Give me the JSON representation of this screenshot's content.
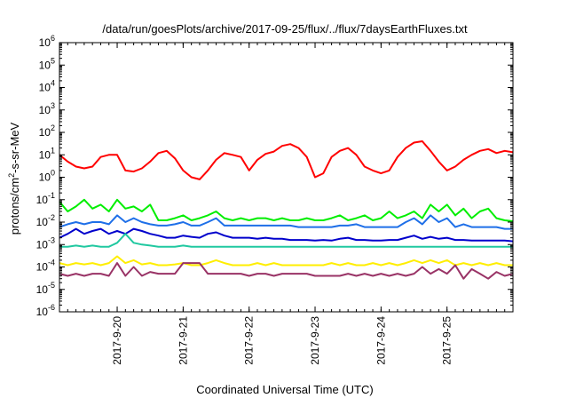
{
  "chart_data": {
    "type": "line",
    "title": "/data/run/goesPlots/archive/2017-09-25/flux/../flux/7daysEarthFluxes.txt",
    "xlabel": "Coordinated Universal Time (UTC)",
    "ylabel": {
      "base": "protons/cm",
      "sup": "2",
      "rest": "-s-sr-MeV"
    },
    "yscale": "log",
    "ylim": [
      1e-06,
      1000000.0
    ],
    "y_tick_labels": [
      {
        "value": 1e-06,
        "base": "10",
        "exp": "-6"
      },
      {
        "value": 1e-05,
        "base": "10",
        "exp": "-5"
      },
      {
        "value": 0.0001,
        "base": "10",
        "exp": "-4"
      },
      {
        "value": 0.001,
        "base": "10",
        "exp": "-3"
      },
      {
        "value": 0.01,
        "base": "10",
        "exp": "-2"
      },
      {
        "value": 0.1,
        "base": "10",
        "exp": "-1"
      },
      {
        "value": 1.0,
        "base": "10",
        "exp": "0"
      },
      {
        "value": 10.0,
        "base": "10",
        "exp": "1"
      },
      {
        "value": 100.0,
        "base": "10",
        "exp": "2"
      },
      {
        "value": 1000.0,
        "base": "10",
        "exp": "3"
      },
      {
        "value": 10000.0,
        "base": "10",
        "exp": "4"
      },
      {
        "value": 100000.0,
        "base": "10",
        "exp": "5"
      },
      {
        "value": 1000000.0,
        "base": "10",
        "exp": "6"
      }
    ],
    "xlim": [
      "2017-09-19 03:00",
      "2017-09-26 00:00"
    ],
    "x_tick_labels": [
      {
        "value": "2017-09-20 00:00",
        "label": "2017-9-20"
      },
      {
        "value": "2017-09-21 00:00",
        "label": "2017-9-21"
      },
      {
        "value": "2017-09-22 00:00",
        "label": "2017-9-22"
      },
      {
        "value": "2017-09-23 00:00",
        "label": "2017-9-23"
      },
      {
        "value": "2017-09-24 00:00",
        "label": "2017-9-24"
      },
      {
        "value": "2017-09-25 00:00",
        "label": "2017-9-25"
      }
    ],
    "grid": false,
    "legend": "none",
    "x": [
      "2017-09-19 03:00",
      "2017-09-19 06:00",
      "2017-09-19 09:00",
      "2017-09-19 12:00",
      "2017-09-19 15:00",
      "2017-09-19 18:00",
      "2017-09-19 21:00",
      "2017-09-20 00:00",
      "2017-09-20 03:00",
      "2017-09-20 06:00",
      "2017-09-20 09:00",
      "2017-09-20 12:00",
      "2017-09-20 15:00",
      "2017-09-20 18:00",
      "2017-09-20 21:00",
      "2017-09-21 00:00",
      "2017-09-21 03:00",
      "2017-09-21 06:00",
      "2017-09-21 09:00",
      "2017-09-21 12:00",
      "2017-09-21 15:00",
      "2017-09-21 18:00",
      "2017-09-21 21:00",
      "2017-09-22 00:00",
      "2017-09-22 03:00",
      "2017-09-22 06:00",
      "2017-09-22 09:00",
      "2017-09-22 12:00",
      "2017-09-22 15:00",
      "2017-09-22 18:00",
      "2017-09-22 21:00",
      "2017-09-23 00:00",
      "2017-09-23 03:00",
      "2017-09-23 06:00",
      "2017-09-23 09:00",
      "2017-09-23 12:00",
      "2017-09-23 15:00",
      "2017-09-23 18:00",
      "2017-09-23 21:00",
      "2017-09-24 00:00",
      "2017-09-24 03:00",
      "2017-09-24 06:00",
      "2017-09-24 09:00",
      "2017-09-24 12:00",
      "2017-09-24 15:00",
      "2017-09-24 18:00",
      "2017-09-24 21:00",
      "2017-09-25 00:00",
      "2017-09-25 03:00",
      "2017-09-25 06:00",
      "2017-09-25 09:00",
      "2017-09-25 12:00",
      "2017-09-25 15:00",
      "2017-09-25 18:00",
      "2017-09-25 21:00",
      "2017-09-26 00:00"
    ],
    "series": [
      {
        "color": "#ff0000",
        "values": [
          10,
          5,
          3,
          2.5,
          3,
          8,
          10,
          10,
          2,
          1.8,
          2.5,
          5,
          12,
          15,
          7,
          2,
          1,
          0.8,
          2,
          6,
          12,
          10,
          8,
          2,
          6,
          11,
          14,
          25,
          30,
          20,
          8,
          1,
          1.5,
          8,
          15,
          20,
          10,
          3,
          2,
          1.5,
          2,
          8,
          20,
          35,
          40,
          15,
          5,
          2,
          3,
          6,
          10,
          15,
          18,
          12,
          15,
          13
        ]
      },
      {
        "color": "#00ee00",
        "values": [
          0.08,
          0.03,
          0.05,
          0.1,
          0.04,
          0.06,
          0.03,
          0.1,
          0.04,
          0.05,
          0.03,
          0.06,
          0.012,
          0.012,
          0.015,
          0.02,
          0.012,
          0.015,
          0.02,
          0.03,
          0.015,
          0.012,
          0.015,
          0.012,
          0.015,
          0.015,
          0.012,
          0.015,
          0.012,
          0.012,
          0.015,
          0.012,
          0.012,
          0.015,
          0.02,
          0.012,
          0.015,
          0.02,
          0.012,
          0.015,
          0.03,
          0.015,
          0.02,
          0.03,
          0.015,
          0.06,
          0.03,
          0.06,
          0.02,
          0.04,
          0.015,
          0.03,
          0.04,
          0.015,
          0.012,
          0.011
        ]
      },
      {
        "color": "#1e6fe8",
        "values": [
          0.006,
          0.008,
          0.01,
          0.008,
          0.01,
          0.01,
          0.008,
          0.02,
          0.01,
          0.015,
          0.01,
          0.008,
          0.007,
          0.007,
          0.008,
          0.01,
          0.007,
          0.007,
          0.01,
          0.015,
          0.007,
          0.007,
          0.007,
          0.007,
          0.007,
          0.007,
          0.007,
          0.007,
          0.007,
          0.006,
          0.006,
          0.006,
          0.006,
          0.006,
          0.007,
          0.007,
          0.008,
          0.006,
          0.006,
          0.006,
          0.006,
          0.006,
          0.01,
          0.015,
          0.008,
          0.02,
          0.01,
          0.015,
          0.006,
          0.008,
          0.006,
          0.006,
          0.006,
          0.006,
          0.005,
          0.005
        ]
      },
      {
        "color": "#0000cc",
        "values": [
          0.002,
          0.003,
          0.005,
          0.003,
          0.004,
          0.005,
          0.003,
          0.004,
          0.003,
          0.005,
          0.004,
          0.003,
          0.0025,
          0.002,
          0.002,
          0.0025,
          0.0022,
          0.002,
          0.003,
          0.0035,
          0.0025,
          0.002,
          0.002,
          0.002,
          0.0018,
          0.002,
          0.0018,
          0.0018,
          0.0016,
          0.0016,
          0.0016,
          0.0015,
          0.0016,
          0.0015,
          0.0018,
          0.002,
          0.0016,
          0.0016,
          0.0015,
          0.0015,
          0.0016,
          0.0016,
          0.002,
          0.0025,
          0.0018,
          0.0022,
          0.0018,
          0.002,
          0.0016,
          0.0016,
          0.0015,
          0.0015,
          0.0015,
          0.0015,
          0.0015,
          0.0014
        ]
      },
      {
        "color": "#20c8a0",
        "values": [
          0.0008,
          0.0008,
          0.0009,
          0.0008,
          0.0009,
          0.0008,
          0.0008,
          0.0012,
          0.003,
          0.0012,
          0.001,
          0.0009,
          0.0008,
          0.0008,
          0.0008,
          0.0009,
          0.0008,
          0.0008,
          0.0008,
          0.0008,
          0.0008,
          0.0008,
          0.0008,
          0.0008,
          0.0008,
          0.0008,
          0.0008,
          0.0008,
          0.0008,
          0.0008,
          0.0008,
          0.0008,
          0.0008,
          0.0008,
          0.0008,
          0.0008,
          0.0008,
          0.0008,
          0.0008,
          0.0008,
          0.0008,
          0.0008,
          0.0008,
          0.0008,
          0.0008,
          0.0008,
          0.0008,
          0.0008,
          0.0008,
          0.0008,
          0.0008,
          0.0008,
          0.0008,
          0.0008,
          0.0008,
          0.0008
        ]
      },
      {
        "color": "#ffee00",
        "values": [
          0.00015,
          0.00012,
          0.00015,
          0.00013,
          0.00015,
          0.00012,
          0.00015,
          0.0003,
          0.00015,
          0.0002,
          0.00013,
          0.00015,
          0.00012,
          0.00012,
          0.00013,
          0.00015,
          0.00012,
          0.00012,
          0.00015,
          0.0002,
          0.00015,
          0.00012,
          0.00012,
          0.00012,
          0.00015,
          0.00012,
          0.00015,
          0.00012,
          0.00012,
          0.00012,
          0.00012,
          0.00012,
          0.00012,
          0.00015,
          0.00012,
          0.00015,
          0.00012,
          0.00012,
          0.00015,
          0.00012,
          0.00015,
          0.00012,
          0.00015,
          0.0002,
          0.00015,
          0.0002,
          0.00015,
          0.0002,
          0.00012,
          0.00015,
          0.00012,
          0.00015,
          0.00012,
          0.00015,
          0.00012,
          0.00012
        ]
      },
      {
        "color": "#993366",
        "values": [
          5e-05,
          4e-05,
          5e-05,
          4e-05,
          5e-05,
          5e-05,
          4e-05,
          0.00015,
          4e-05,
          0.0001,
          4e-05,
          6e-05,
          5e-05,
          5e-05,
          5e-05,
          0.00015,
          0.00015,
          0.00015,
          5e-05,
          5e-05,
          5e-05,
          5e-05,
          5e-05,
          4e-05,
          5e-05,
          5e-05,
          4e-05,
          5e-05,
          5e-05,
          5e-05,
          5e-05,
          4e-05,
          4e-05,
          4e-05,
          4e-05,
          5e-05,
          4e-05,
          5e-05,
          4e-05,
          5e-05,
          4e-05,
          5e-05,
          4e-05,
          5e-05,
          0.0001,
          5e-05,
          8e-05,
          5e-05,
          0.00012,
          3e-05,
          8e-05,
          5e-05,
          3e-05,
          6e-05,
          4e-05,
          5e-05
        ]
      }
    ]
  }
}
